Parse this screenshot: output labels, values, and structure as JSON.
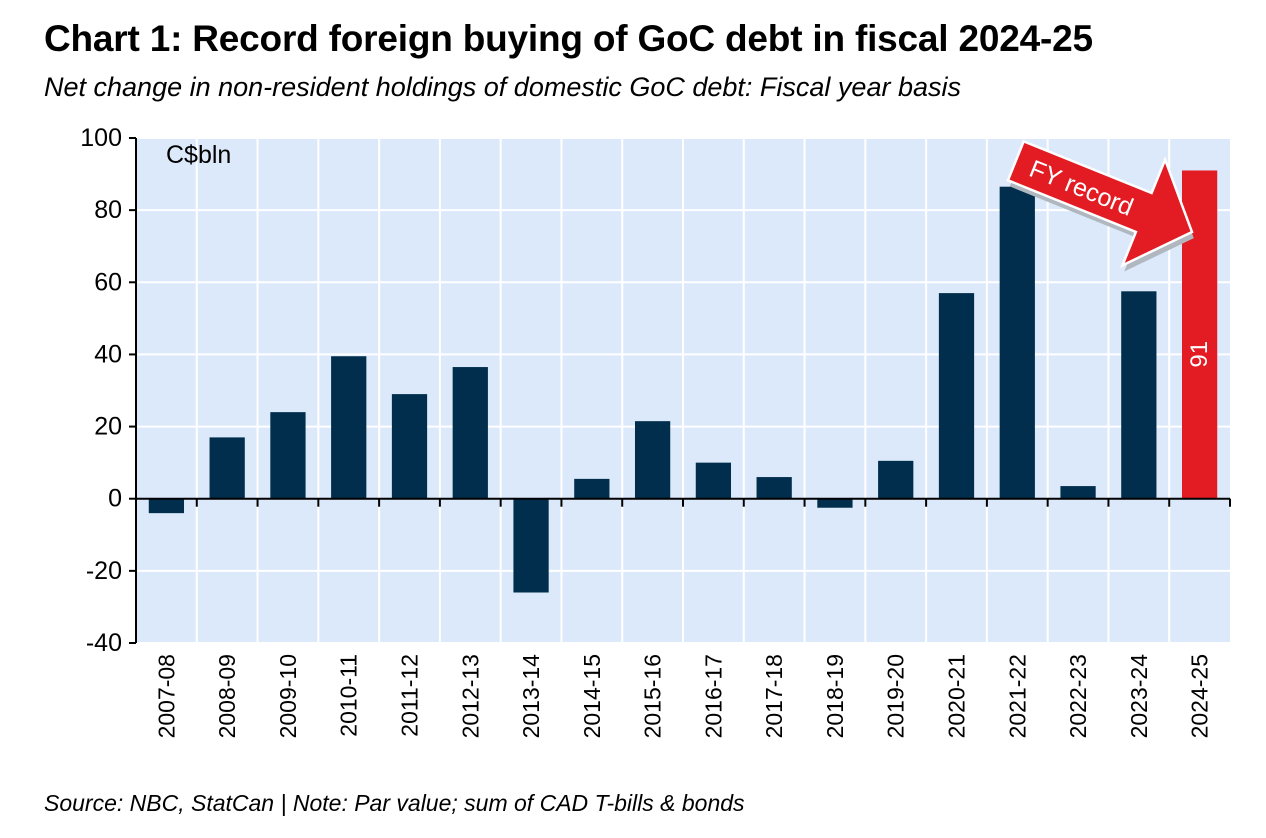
{
  "title": "Chart 1: Record foreign buying of GoC debt in fiscal 2024-25",
  "subtitle": "Net change in non-resident holdings of domestic GoC debt: Fiscal year basis",
  "source": "Source: NBC, StatCan | Note: Par value; sum of CAD T-bills & bonds",
  "colors": {
    "plot_background": "#dce9fb",
    "bar": "#002e4c",
    "highlight": "#e31b23",
    "gridline": "#ffffff"
  },
  "chart_data": {
    "type": "bar",
    "unit_label": "C$bln",
    "categories": [
      "2007-08",
      "2008-09",
      "2009-10",
      "2010-11",
      "2011-12",
      "2012-13",
      "2013-14",
      "2014-15",
      "2015-16",
      "2016-17",
      "2017-18",
      "2018-19",
      "2019-20",
      "2020-21",
      "2021-22",
      "2022-23",
      "2023-24",
      "2024-25"
    ],
    "values": [
      -4,
      17,
      24,
      39.5,
      29,
      36.5,
      -26,
      5.5,
      21.5,
      10,
      6,
      -2.5,
      10.5,
      57,
      86.5,
      3.5,
      57.5,
      91
    ],
    "highlight_index": 17,
    "highlight_label": "91",
    "annotation": "FY record",
    "ylim": [
      -40,
      100
    ],
    "yticks": [
      -40,
      -20,
      0,
      20,
      40,
      60,
      80,
      100
    ],
    "grid": true,
    "legend": "none"
  }
}
